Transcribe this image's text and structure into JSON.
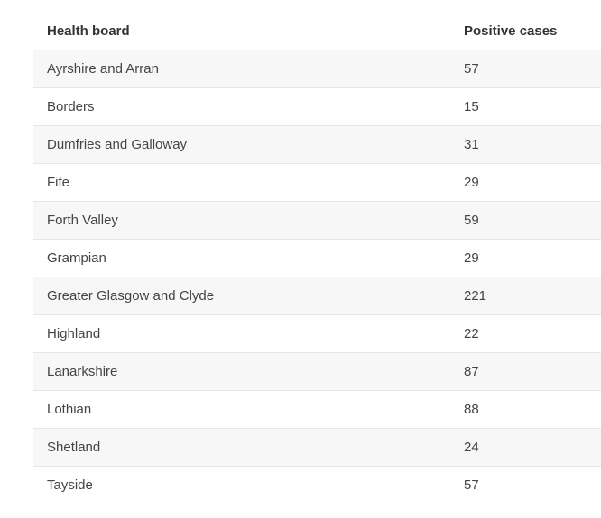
{
  "table": {
    "headers": [
      "Health board",
      "Positive cases"
    ],
    "rows": [
      [
        "Ayrshire and Arran",
        "57"
      ],
      [
        "Borders",
        "15"
      ],
      [
        "Dumfries and Galloway",
        "31"
      ],
      [
        "Fife",
        "29"
      ],
      [
        "Forth Valley",
        "59"
      ],
      [
        "Grampian",
        "29"
      ],
      [
        "Greater Glasgow and Clyde",
        "221"
      ],
      [
        "Highland",
        "22"
      ],
      [
        "Lanarkshire",
        "87"
      ],
      [
        "Lothian",
        "88"
      ],
      [
        "Shetland",
        "24"
      ],
      [
        "Tayside",
        "57"
      ]
    ]
  },
  "colors": {
    "stripe": "#f7f7f7",
    "border": "#e6e6e6",
    "text": "#444444"
  }
}
